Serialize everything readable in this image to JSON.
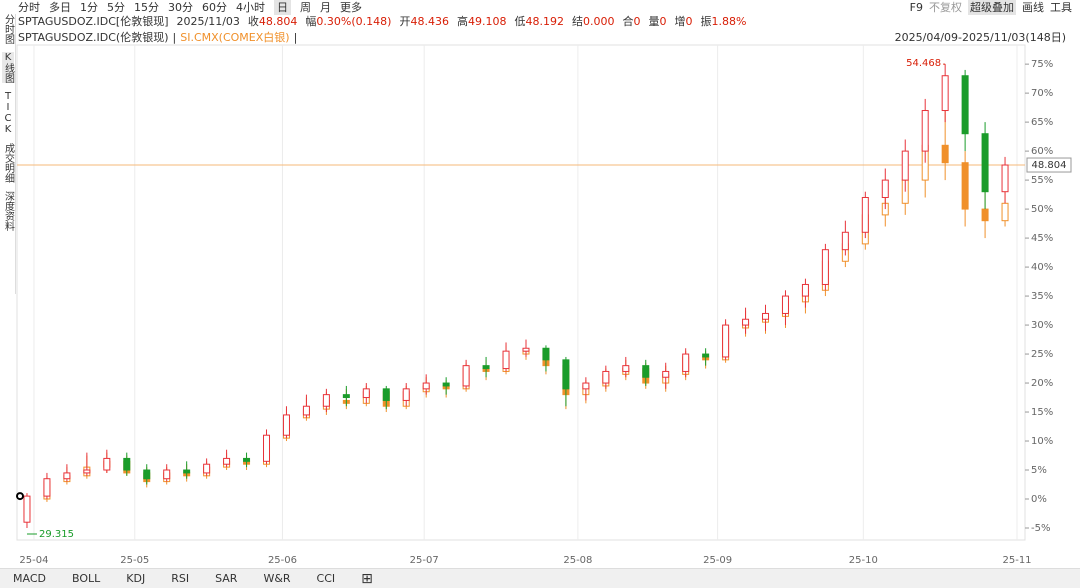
{
  "header": {
    "tabs": [
      "分时",
      "多日",
      "1分",
      "5分",
      "15分",
      "30分",
      "60分",
      "4小时",
      "日",
      "周",
      "月",
      "更多"
    ],
    "active_tab": 8,
    "tools": [
      "F9",
      "不复权",
      "超级叠加",
      "画线",
      "工具"
    ],
    "symbol": "SPTAGUSDOZ.IDC[伦敦银现]",
    "date": "2025/11/03",
    "quote": [
      {
        "label": "收",
        "value": "48.804"
      },
      {
        "label": "幅",
        "value": "0.30%(0.148)"
      },
      {
        "label": "开",
        "value": "48.436"
      },
      {
        "label": "高",
        "value": "49.108"
      },
      {
        "label": "低",
        "value": "48.192"
      },
      {
        "label": "结",
        "value": "0.000"
      },
      {
        "label": "合",
        "value": "0"
      },
      {
        "label": "量",
        "value": "0"
      },
      {
        "label": "增",
        "value": "0"
      },
      {
        "label": "振",
        "value": "1.88%"
      }
    ],
    "range": "2025/04/09-2025/11/03(148日)"
  },
  "sidebar": [
    "分时图",
    "K线图",
    "TICK",
    "成交明细",
    "深度资料"
  ],
  "footer_tabs": [
    "MACD",
    "BOLL",
    "KDJ",
    "RSI",
    "SAR",
    "W&R",
    "CCI"
  ],
  "chart_data": {
    "type": "candlestick",
    "xlim": [
      -0.5,
      50
    ],
    "xticks": [
      {
        "value": 0.35,
        "label": "25-04"
      },
      {
        "value": 5.4,
        "label": "25-05"
      },
      {
        "value": 12.8,
        "label": "25-06"
      },
      {
        "value": 19.9,
        "label": "25-07"
      },
      {
        "value": 27.6,
        "label": "25-08"
      },
      {
        "value": 34.6,
        "label": "25-09"
      },
      {
        "value": 41.9,
        "label": "25-10"
      },
      {
        "value": 49.6,
        "label": "25-11"
      }
    ],
    "ylim": [
      -7.07,
      78.3
    ],
    "yticks": [
      {
        "value": -5,
        "label": "-5%"
      },
      {
        "value": 0,
        "label": "0%"
      },
      {
        "value": 5,
        "label": "5%"
      },
      {
        "value": 10,
        "label": "10%"
      },
      {
        "value": 15,
        "label": "15%"
      },
      {
        "value": 20,
        "label": "20%"
      },
      {
        "value": 25,
        "label": "25%"
      },
      {
        "value": 30,
        "label": "30%"
      },
      {
        "value": 35,
        "label": "35%"
      },
      {
        "value": 40,
        "label": "40%"
      },
      {
        "value": 45,
        "label": "45%"
      },
      {
        "value": 50,
        "label": "50%"
      },
      {
        "value": 55,
        "label": "55%"
      },
      {
        "value": 60,
        "label": "60%"
      },
      {
        "value": 65,
        "label": "65%"
      },
      {
        "value": 70,
        "label": "70%"
      },
      {
        "value": 75,
        "label": "75%"
      }
    ],
    "price_line": 57.6,
    "price_label": "48.804",
    "high_label": "54.468",
    "low_label": "29.315",
    "series": [
      {
        "name": "SPTAGUSDOZ.IDC(伦敦银现)",
        "up_color": "#e8333a",
        "down_color": "#1a9c2a",
        "legend_color": "#333",
        "candles": [
          [
            -4,
            1,
            -5,
            0.5
          ],
          [
            0.5,
            4.5,
            0,
            3.5
          ],
          [
            3.5,
            6,
            3,
            4.5
          ],
          [
            4.5,
            8,
            4,
            5
          ],
          [
            5,
            8.5,
            4.5,
            7
          ],
          [
            7,
            8,
            4,
            5
          ],
          [
            5,
            6,
            2.5,
            3.5
          ],
          [
            3.5,
            6,
            3,
            5
          ],
          [
            5,
            6.5,
            3.5,
            4.5
          ],
          [
            4.5,
            7,
            4,
            6
          ],
          [
            6,
            8.5,
            5.5,
            7
          ],
          [
            7,
            8,
            5.5,
            6.5
          ],
          [
            6.5,
            12,
            6,
            11
          ],
          [
            11,
            16,
            10.5,
            14.5
          ],
          [
            14.5,
            18,
            14,
            16
          ],
          [
            16,
            19,
            15,
            18
          ],
          [
            18,
            19.5,
            16,
            17.5
          ],
          [
            17.5,
            20,
            16.5,
            19
          ],
          [
            19,
            19.5,
            15.5,
            17
          ],
          [
            17,
            20,
            16,
            19
          ],
          [
            19,
            21.5,
            18,
            20
          ],
          [
            20,
            21,
            18,
            19.5
          ],
          [
            19.5,
            24,
            19,
            23
          ],
          [
            23,
            24.5,
            21,
            22.5
          ],
          [
            22.5,
            27,
            22,
            25.5
          ],
          [
            25.5,
            27.5,
            24.5,
            26
          ],
          [
            26,
            26.5,
            22,
            24
          ],
          [
            24,
            24.5,
            16,
            19
          ],
          [
            19,
            21,
            17,
            20
          ],
          [
            20,
            23,
            19,
            22
          ],
          [
            22,
            24.5,
            21,
            23
          ],
          [
            23,
            24,
            19.5,
            21
          ],
          [
            21,
            23.5,
            19,
            22
          ],
          [
            22,
            26,
            21,
            25
          ],
          [
            25,
            26,
            23,
            24.5
          ],
          [
            24.5,
            31,
            24,
            30
          ],
          [
            30,
            33,
            28.5,
            31
          ],
          [
            31,
            33.5,
            29,
            32
          ],
          [
            32,
            36,
            30,
            35
          ],
          [
            35,
            38,
            33,
            37
          ],
          [
            37,
            44,
            36,
            43
          ],
          [
            43,
            48,
            42,
            46
          ],
          [
            46,
            53,
            45,
            52
          ],
          [
            52,
            57,
            50,
            55
          ],
          [
            55,
            62,
            53,
            60
          ],
          [
            60,
            69,
            58,
            67
          ],
          [
            67,
            75,
            65,
            73
          ],
          [
            73,
            74,
            60,
            63
          ],
          [
            63,
            65,
            50,
            53
          ],
          [
            53,
            59,
            51,
            57.6
          ]
        ]
      },
      {
        "name": "SI.CMX(COMEX白银)",
        "up_color": "#f0902a",
        "down_color": "#f0902a",
        "legend_color": "#f0902a",
        "candles": [
          [
            -3,
            1,
            -4,
            0
          ],
          [
            0,
            4,
            -0.5,
            3
          ],
          [
            3,
            5.5,
            2.5,
            4
          ],
          [
            4,
            7.5,
            3.5,
            5.5
          ],
          [
            5.5,
            8,
            4.5,
            6.5
          ],
          [
            6.5,
            7.5,
            4,
            4.5
          ],
          [
            4.5,
            5.5,
            2,
            3
          ],
          [
            3,
            5.5,
            2.5,
            4.5
          ],
          [
            4.5,
            6,
            3,
            4
          ],
          [
            4,
            6.5,
            3.5,
            5.5
          ],
          [
            5.5,
            8,
            5,
            6.5
          ],
          [
            6.5,
            7.5,
            5,
            6
          ],
          [
            6,
            11.5,
            5.5,
            10.5
          ],
          [
            10.5,
            15.5,
            10,
            14
          ],
          [
            14,
            17.5,
            13.5,
            15.5
          ],
          [
            15.5,
            18.5,
            14.5,
            17
          ],
          [
            17,
            19,
            15.5,
            16.5
          ],
          [
            16.5,
            19.5,
            16,
            18.5
          ],
          [
            18.5,
            19,
            15,
            16
          ],
          [
            16,
            19.5,
            15.5,
            18.5
          ],
          [
            18.5,
            21,
            17.5,
            19.5
          ],
          [
            19.5,
            20.5,
            17.5,
            19
          ],
          [
            19,
            23.5,
            18.5,
            22.5
          ],
          [
            22.5,
            24,
            20.5,
            22
          ],
          [
            22,
            26.5,
            21.5,
            25
          ],
          [
            25,
            27,
            24,
            25.5
          ],
          [
            25.5,
            26,
            21.5,
            23
          ],
          [
            23,
            23.5,
            15.5,
            18
          ],
          [
            18,
            20.5,
            16.5,
            19.5
          ],
          [
            19.5,
            22.5,
            18.5,
            21.5
          ],
          [
            21.5,
            24,
            20.5,
            22.5
          ],
          [
            22.5,
            23.5,
            19,
            20
          ],
          [
            20,
            23,
            18.5,
            21.5
          ],
          [
            21.5,
            25.5,
            20.5,
            24.5
          ],
          [
            24.5,
            25.5,
            22.5,
            24
          ],
          [
            24,
            30.5,
            23.5,
            29.5
          ],
          [
            29.5,
            32.5,
            28,
            30.5
          ],
          [
            30.5,
            33,
            28.5,
            31.5
          ],
          [
            31.5,
            35,
            29.5,
            34
          ],
          [
            34,
            37,
            32,
            36
          ],
          [
            36,
            42,
            35,
            41
          ],
          [
            41,
            46,
            40,
            44
          ],
          [
            44,
            50,
            43,
            49
          ],
          [
            49,
            53,
            47,
            51
          ],
          [
            51,
            58,
            49,
            55
          ],
          [
            55,
            63,
            52,
            61
          ],
          [
            61,
            68,
            55,
            58
          ],
          [
            58,
            60,
            47,
            50
          ],
          [
            50,
            53,
            45,
            48
          ],
          [
            48,
            53,
            47,
            51
          ]
        ]
      }
    ]
  }
}
